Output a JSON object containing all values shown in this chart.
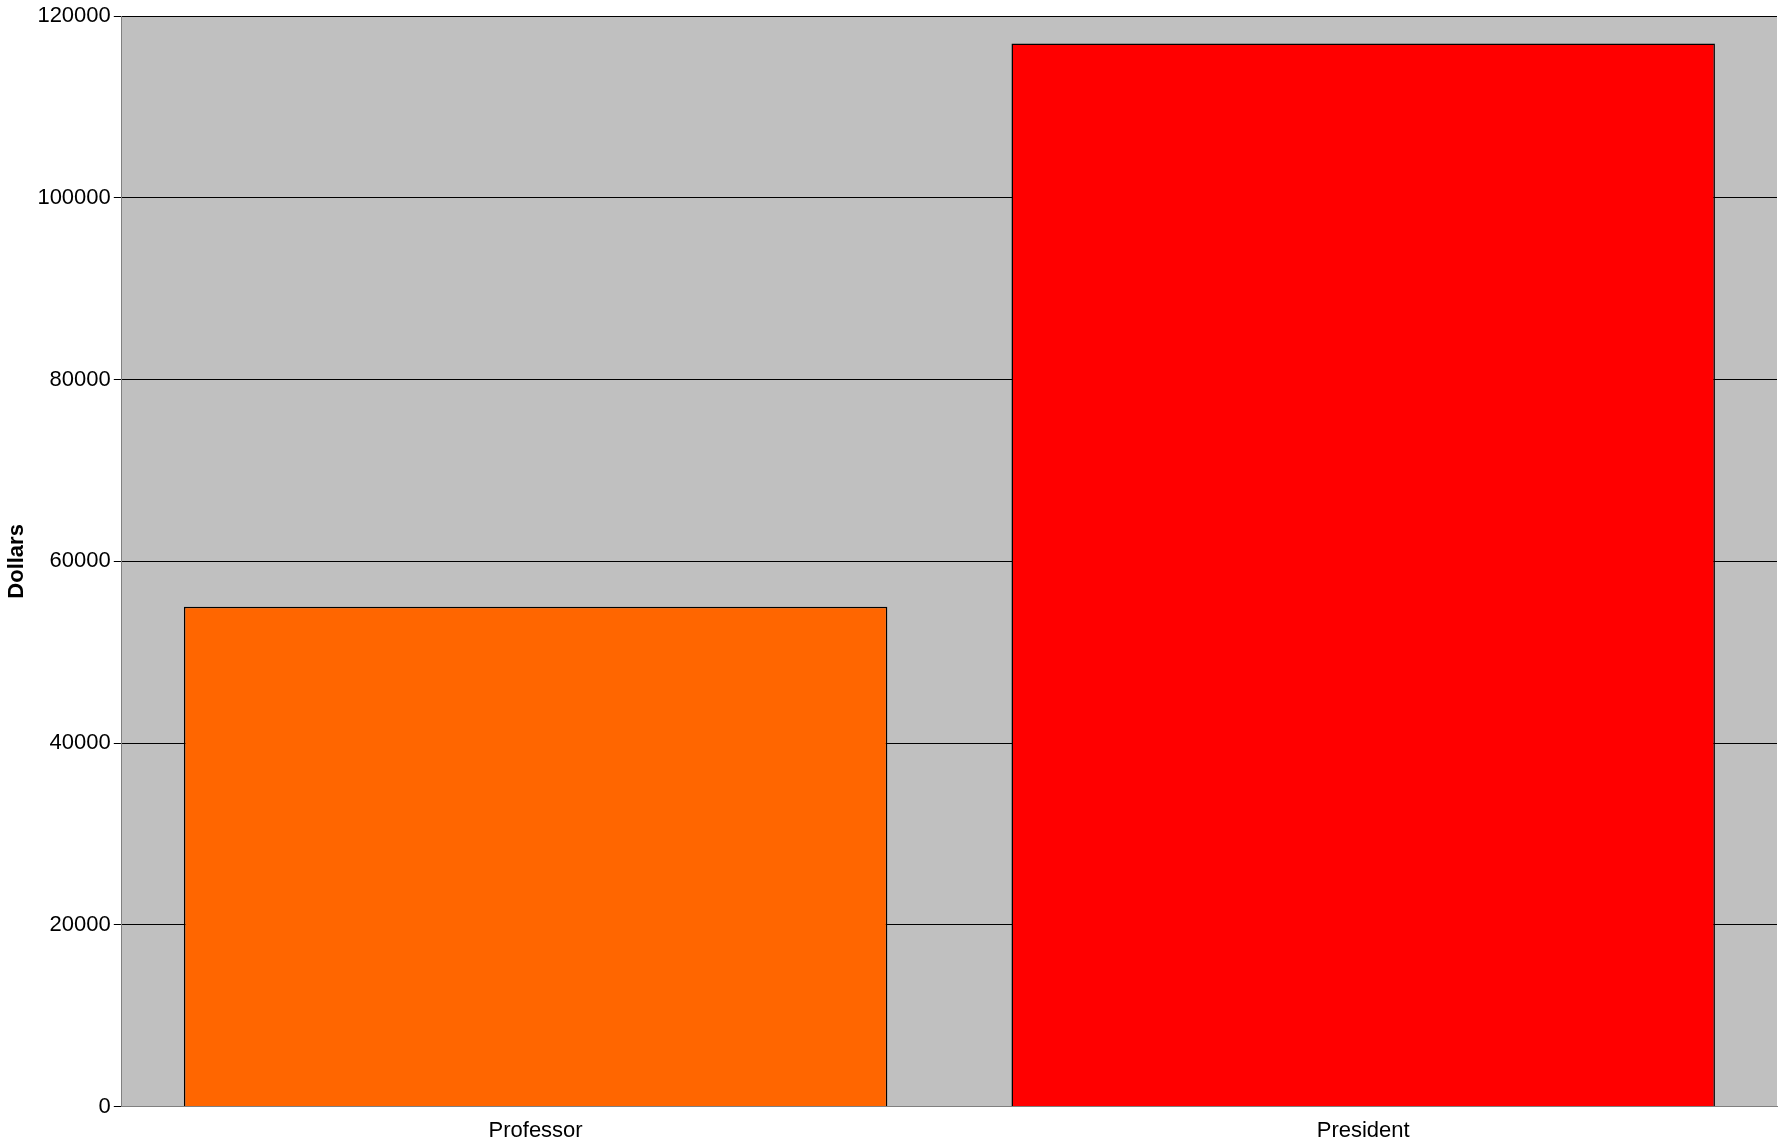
{
  "chart_data": {
    "type": "bar",
    "ylabel": "Dollars",
    "categories": [
      "Professor",
      "President"
    ],
    "values": [
      55000,
      117000
    ],
    "colors": [
      "#ff6600",
      "#ff0000"
    ],
    "ylim": [
      0,
      120000
    ],
    "yticks": [
      0,
      20000,
      40000,
      60000,
      80000,
      100000,
      120000
    ],
    "grid": "y",
    "legend": false
  }
}
